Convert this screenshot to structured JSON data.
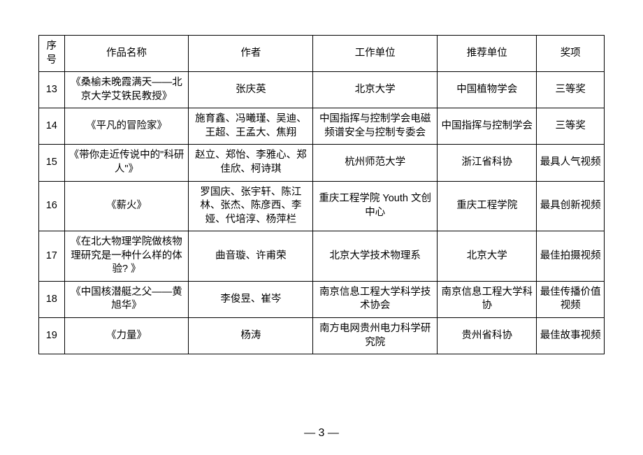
{
  "table": {
    "columns": [
      "序号",
      "作品名称",
      "作者",
      "工作单位",
      "推荐单位",
      "奖项"
    ],
    "rows": [
      {
        "seq": "13",
        "name": "《桑榆未晚霞满天——北京大学艾铁民教授》",
        "author": "张庆英",
        "work": "北京大学",
        "rec": "中国植物学会",
        "award": "三等奖"
      },
      {
        "seq": "14",
        "name": "《平凡的冒险家》",
        "author": "施育鑫、冯曦瑾、吴迪、王超、王孟大、焦翔",
        "work": "中国指挥与控制学会电磁频谱安全与控制专委会",
        "rec": "中国指挥与控制学会",
        "award": "三等奖"
      },
      {
        "seq": "15",
        "name": "《带你走近传说中的\"科研人\"》",
        "author": "赵立、郑怡、李雅心、郑佳欣、柯诗琪",
        "work": "杭州师范大学",
        "rec": "浙江省科协",
        "award": "最具人气视频"
      },
      {
        "seq": "16",
        "name": "《薪火》",
        "author": "罗国庆、张宇轩、陈江林、张杰、陈彦西、李娅、代培淳、杨萍栏",
        "work": "重庆工程学院 Youth 文创中心",
        "rec": "重庆工程学院",
        "award": "最具创新视频"
      },
      {
        "seq": "17",
        "name": "《在北大物理学院做核物理研究是一种什么样的体验? 》",
        "author": "曲音璇、许甫荣",
        "work": "北京大学技术物理系",
        "rec": "北京大学",
        "award": "最佳拍摄视频"
      },
      {
        "seq": "18",
        "name": "《中国核潜艇之父——黄旭华》",
        "author": "李俊昱、崔岑",
        "work": "南京信息工程大学科学技术协会",
        "rec": "南京信息工程大学科协",
        "award": "最佳传播价值视频"
      },
      {
        "seq": "19",
        "name": "《力量》",
        "author": "杨涛",
        "work": "南方电网贵州电力科学研究院",
        "rec": "贵州省科协",
        "award": "最佳故事视频"
      }
    ]
  },
  "page_number": "— 3 —"
}
